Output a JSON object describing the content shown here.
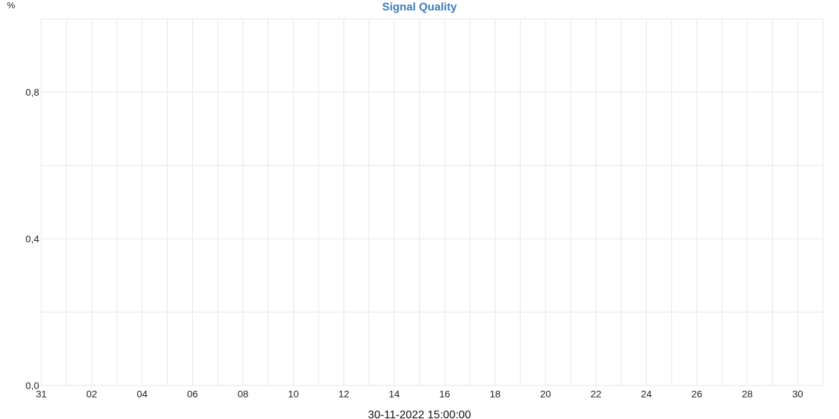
{
  "chart_data": {
    "type": "line",
    "title": "Signal Quality",
    "ylabel": "%",
    "xlabel": "30-11-2022 15:00:00",
    "x_ticks": [
      "31",
      "02",
      "04",
      "06",
      "08",
      "10",
      "12",
      "14",
      "16",
      "18",
      "20",
      "22",
      "24",
      "26",
      "28",
      "30"
    ],
    "x_range": [
      "2022-10-31",
      "2022-11-30"
    ],
    "x_grid_step_days": 1,
    "y_ticks": [
      "0,0",
      "0,4",
      "0,8"
    ],
    "ylim": [
      0,
      1.0
    ],
    "y_grid_step": 0.2,
    "grid": true,
    "legend": "none",
    "series": [],
    "colors": {
      "title": "#3a7ebf",
      "grid": "#e6e6e6",
      "text": "#222222"
    }
  }
}
